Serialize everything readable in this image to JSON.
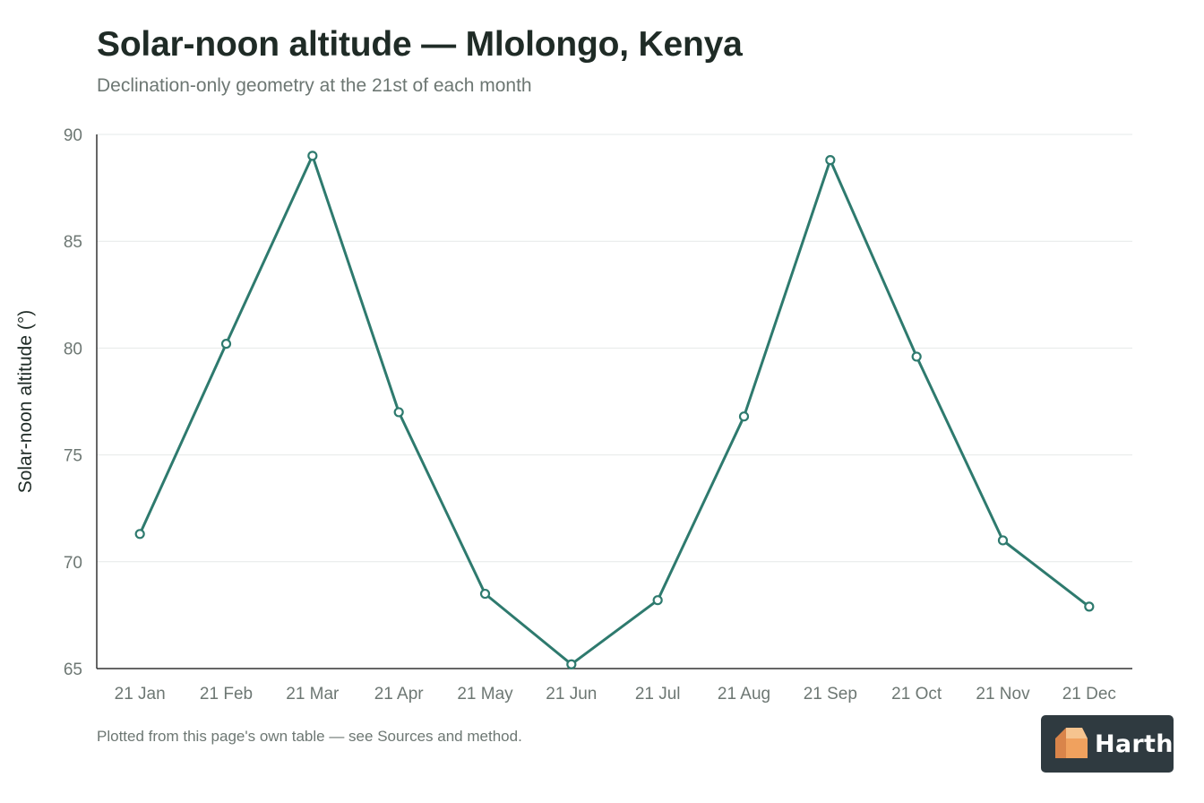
{
  "header": {
    "title": "Solar-noon altitude — Mlolongo, Kenya",
    "subtitle": "Declination-only geometry at the 21st of each month"
  },
  "footer": {
    "note": "Plotted from this page's own table — see Sources and method."
  },
  "logo": {
    "text": "Harth",
    "icon": "house-cube-icon"
  },
  "colors": {
    "line": "#2e7a6e",
    "grid": "#e6e9e8",
    "axis": "#333333",
    "tick_text": "#6d7773",
    "label_text": "#1f2b26"
  },
  "chart_data": {
    "type": "line",
    "title": "Solar-noon altitude — Mlolongo, Kenya",
    "subtitle": "Declination-only geometry at the 21st of each month",
    "xlabel": "",
    "ylabel": "Solar-noon altitude (°)",
    "ylim": [
      65,
      90
    ],
    "yticks": [
      65,
      70,
      75,
      80,
      85,
      90
    ],
    "grid": true,
    "categories": [
      "21 Jan",
      "21 Feb",
      "21 Mar",
      "21 Apr",
      "21 May",
      "21 Jun",
      "21 Jul",
      "21 Aug",
      "21 Sep",
      "21 Oct",
      "21 Nov",
      "21 Dec"
    ],
    "values": [
      71.3,
      80.2,
      89.0,
      77.0,
      68.5,
      65.2,
      68.2,
      76.8,
      88.8,
      79.6,
      71.0,
      67.9
    ]
  }
}
